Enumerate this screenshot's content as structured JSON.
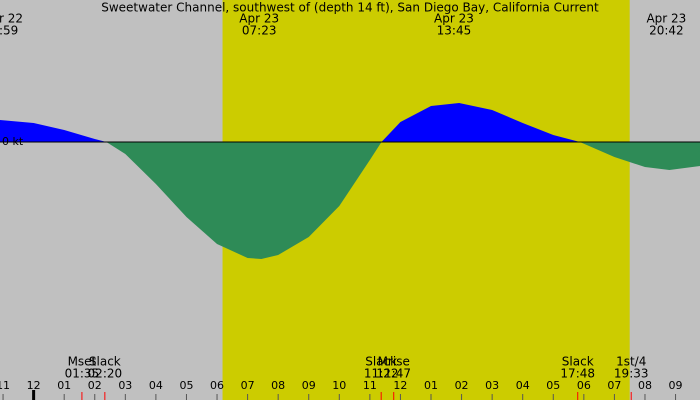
{
  "chart_data": {
    "type": "area",
    "title": "Sweetwater Channel, southwest of (depth 14 ft), San Diego Bay, California Current",
    "x": [
      -1.1,
      0,
      1,
      2,
      2.38,
      3,
      4,
      5,
      6,
      7,
      7.45,
      8,
      9,
      10,
      11,
      11.38,
      12,
      13,
      13.92,
      15,
      16,
      17,
      17.87,
      19,
      20,
      20.8,
      21.8
    ],
    "values": [
      0.22,
      0.19,
      0.12,
      0.03,
      0,
      -0.12,
      -0.42,
      -0.75,
      -1.02,
      -1.16,
      -1.17,
      -1.13,
      -0.95,
      -0.64,
      -0.18,
      0,
      0.2,
      0.36,
      0.39,
      0.32,
      0.19,
      0.07,
      0,
      -0.15,
      -0.25,
      -0.28,
      -0.24
    ],
    "xlim": [
      -1.1,
      21.8
    ],
    "ylim": [
      -2.58,
      1.42
    ],
    "zero_label": "0 kt",
    "daylight": [
      6.18,
      19.5
    ],
    "positive_color": "#0000ff",
    "negative_color": "#2e8b57",
    "night_color": "#c0c0c0",
    "day_color": "#cccc00",
    "xticks": [
      {
        "value": -1,
        "label": "11"
      },
      {
        "value": 0,
        "label": "12"
      },
      {
        "value": 1,
        "label": "01"
      },
      {
        "value": 2,
        "label": "02"
      },
      {
        "value": 3,
        "label": "03"
      },
      {
        "value": 4,
        "label": "04"
      },
      {
        "value": 5,
        "label": "05"
      },
      {
        "value": 6,
        "label": "06"
      },
      {
        "value": 7,
        "label": "07"
      },
      {
        "value": 8,
        "label": "08"
      },
      {
        "value": 9,
        "label": "09"
      },
      {
        "value": 10,
        "label": "10"
      },
      {
        "value": 11,
        "label": "11"
      },
      {
        "value": 12,
        "label": "12"
      },
      {
        "value": 13,
        "label": "01"
      },
      {
        "value": 14,
        "label": "02"
      },
      {
        "value": 15,
        "label": "03"
      },
      {
        "value": 16,
        "label": "04"
      },
      {
        "value": 17,
        "label": "05"
      },
      {
        "value": 18,
        "label": "06"
      },
      {
        "value": 19,
        "label": "07"
      },
      {
        "value": 20,
        "label": "08"
      },
      {
        "value": 21,
        "label": "09"
      }
    ],
    "extremes": [
      {
        "date": "r 22",
        "time": ":59",
        "x": -1.02
      },
      {
        "date": "Apr 23",
        "time": "07:23",
        "x": 7.38
      },
      {
        "date": "Apr 23",
        "time": "13:45",
        "x": 13.75
      },
      {
        "date": "Apr 23",
        "time": "20:42",
        "x": 20.7
      }
    ],
    "events": [
      {
        "name": "Mset",
        "time": "01:35",
        "x": 1.58
      },
      {
        "name": "Slack",
        "time": "02:20",
        "x": 2.33
      },
      {
        "name": "Slack",
        "time": "11:22",
        "x": 11.37
      },
      {
        "name": "Mrise",
        "time": "11:47",
        "x": 11.78
      },
      {
        "name": "Slack",
        "time": "17:48",
        "x": 17.8
      },
      {
        "name": "1st/4",
        "time": "19:33",
        "x": 19.55
      }
    ]
  }
}
